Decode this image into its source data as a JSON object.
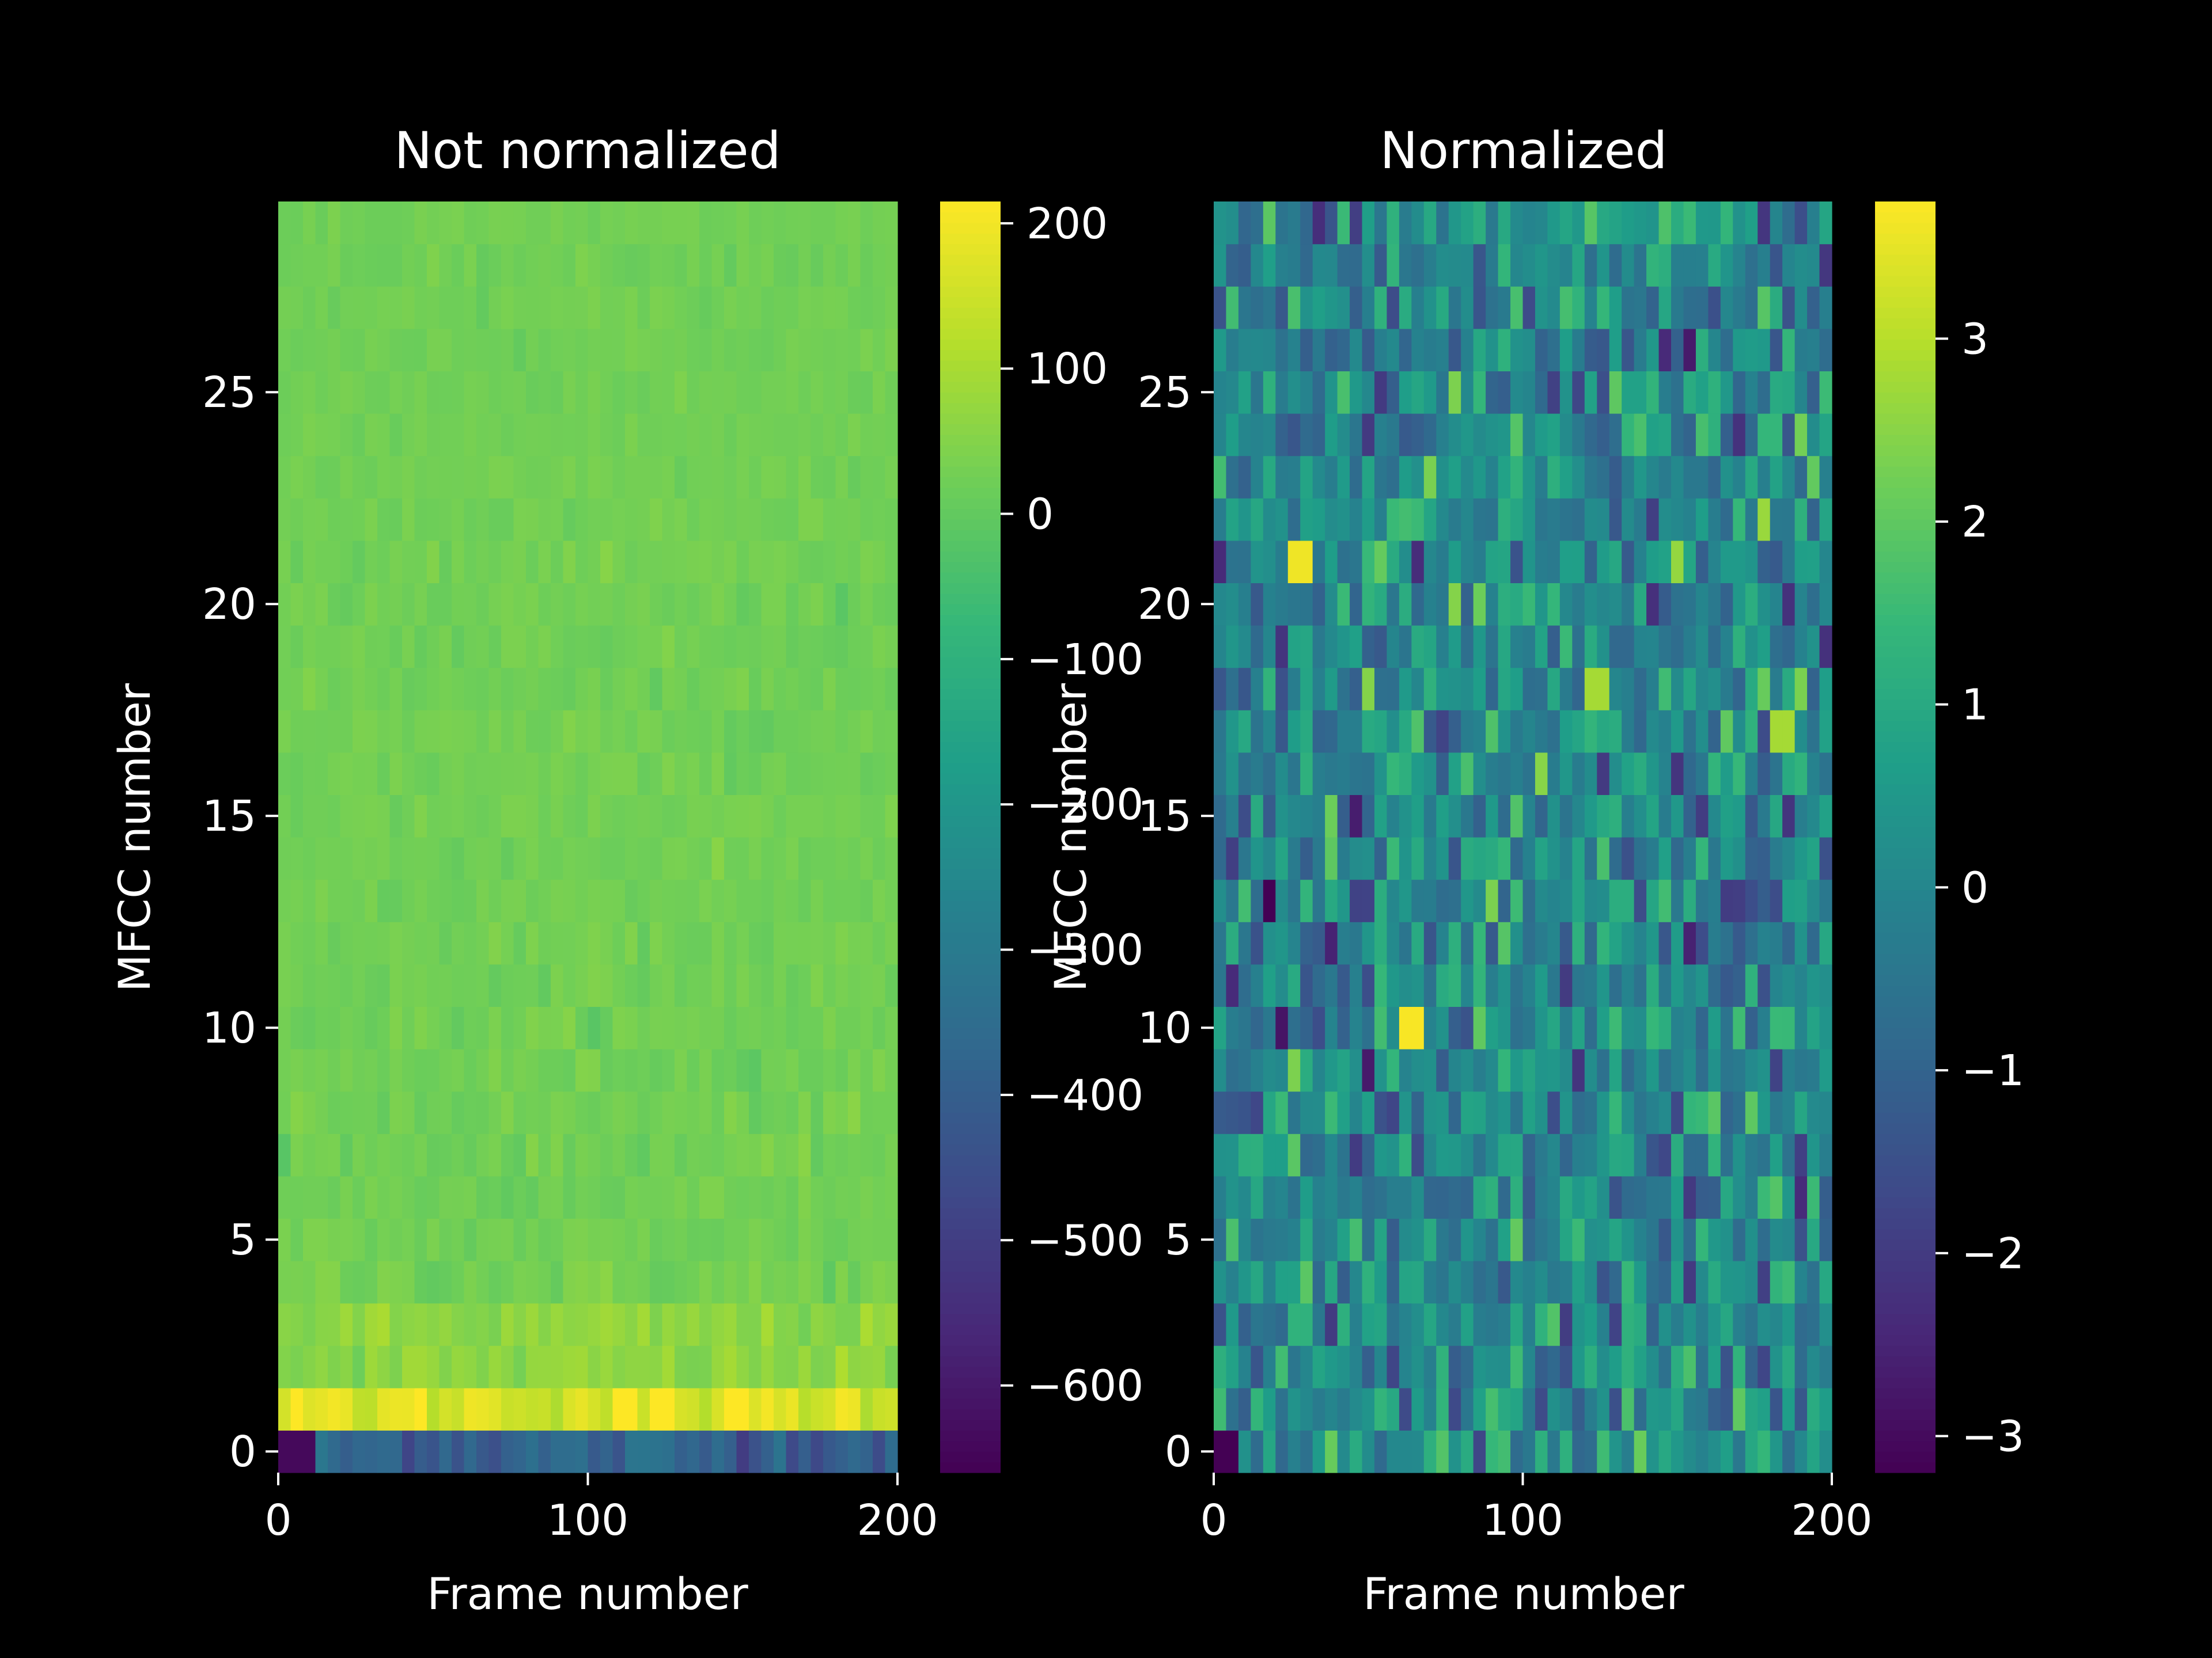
{
  "colors": {
    "background": "#000000",
    "text": "#ffffff",
    "colormap": "viridis"
  },
  "chart_data": [
    {
      "type": "heatmap",
      "title": "Not normalized",
      "xlabel": "Frame number",
      "ylabel": "MFCC number",
      "xlim": [
        0,
        200
      ],
      "ylim": [
        -0.5,
        29.5
      ],
      "x_ticks": [
        "0",
        "100",
        "200"
      ],
      "y_ticks": [
        "0",
        "5",
        "10",
        "15",
        "20",
        "25"
      ],
      "colorbar": {
        "range": [
          -660,
          215
        ],
        "ticks": [
          "200",
          "100",
          "0",
          "−100",
          "−200",
          "−300",
          "−400",
          "−500",
          "−600"
        ]
      },
      "rows": [
        {
          "mfcc": 0,
          "mean": -380,
          "spread": 60,
          "first_frames_value": -640
        },
        {
          "mfcc": 1,
          "mean": 170,
          "spread": 40
        },
        {
          "mfcc": 2,
          "mean": 60,
          "spread": 25
        },
        {
          "mfcc": 3,
          "mean": 60,
          "spread": 25
        },
        {
          "mfcc": 4,
          "mean": 30,
          "spread": 20
        },
        {
          "mfcc": 5,
          "mean": 25,
          "spread": 15
        },
        {
          "mfcc": 6,
          "mean": 25,
          "spread": 15
        },
        {
          "mfcc": 7,
          "mean": 25,
          "spread": 15
        },
        {
          "mfcc": 8,
          "mean": 25,
          "spread": 15
        },
        {
          "mfcc": 9,
          "mean": 25,
          "spread": 15
        },
        {
          "mfcc": 10,
          "mean": 25,
          "spread": 15
        },
        {
          "mfcc": 11,
          "mean": 25,
          "spread": 12
        },
        {
          "mfcc": 12,
          "mean": 25,
          "spread": 12
        },
        {
          "mfcc": 13,
          "mean": 25,
          "spread": 12
        },
        {
          "mfcc": 14,
          "mean": 25,
          "spread": 12
        },
        {
          "mfcc": 15,
          "mean": 25,
          "spread": 12
        },
        {
          "mfcc": 16,
          "mean": 25,
          "spread": 12
        },
        {
          "mfcc": 17,
          "mean": 25,
          "spread": 12
        },
        {
          "mfcc": 18,
          "mean": 25,
          "spread": 12
        },
        {
          "mfcc": 19,
          "mean": 25,
          "spread": 12
        },
        {
          "mfcc": 20,
          "mean": 25,
          "spread": 12
        },
        {
          "mfcc": 21,
          "mean": 25,
          "spread": 12
        },
        {
          "mfcc": 22,
          "mean": 25,
          "spread": 10
        },
        {
          "mfcc": 23,
          "mean": 25,
          "spread": 10
        },
        {
          "mfcc": 24,
          "mean": 25,
          "spread": 10
        },
        {
          "mfcc": 25,
          "mean": 25,
          "spread": 10
        },
        {
          "mfcc": 26,
          "mean": 25,
          "spread": 10
        },
        {
          "mfcc": 27,
          "mean": 25,
          "spread": 10
        },
        {
          "mfcc": 28,
          "mean": 25,
          "spread": 10
        },
        {
          "mfcc": 29,
          "mean": 25,
          "spread": 10
        }
      ]
    },
    {
      "type": "heatmap",
      "title": "Normalized",
      "xlabel": "Frame number",
      "ylabel": "MFCC number",
      "xlim": [
        0,
        200
      ],
      "ylim": [
        -0.5,
        29.5
      ],
      "x_ticks": [
        "0",
        "100",
        "200"
      ],
      "y_ticks": [
        "0",
        "5",
        "10",
        "15",
        "20",
        "25"
      ],
      "colorbar": {
        "range": [
          -3.2,
          3.75
        ],
        "ticks": [
          "3",
          "2",
          "1",
          "0",
          "−1",
          "−2",
          "−3"
        ]
      },
      "rows_mean": 0,
      "rows_std": 1,
      "hotspots": [
        {
          "mfcc": 21,
          "frame": 28,
          "value": 3.6
        },
        {
          "mfcc": 10,
          "frame": 64,
          "value": 3.7
        },
        {
          "mfcc": 18,
          "frame": 124,
          "value": 2.8
        },
        {
          "mfcc": 17,
          "frame": 184,
          "value": 2.8
        },
        {
          "mfcc": 0,
          "frame": 4,
          "value": -3.2
        }
      ]
    }
  ]
}
